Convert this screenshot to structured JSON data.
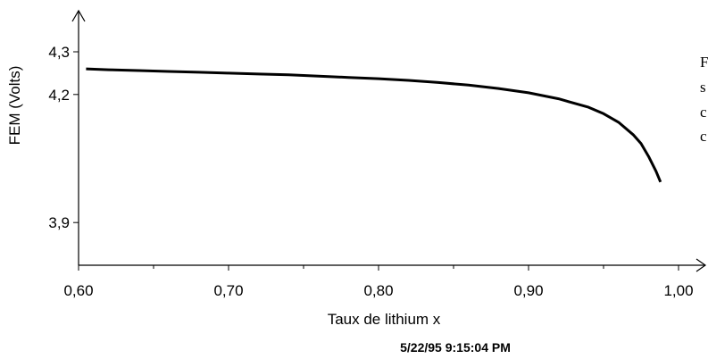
{
  "chart_data": {
    "type": "line",
    "xlabel": "Taux de lithium x",
    "ylabel": "FEM (Volts)",
    "xlim": [
      0.6,
      1.0
    ],
    "ylim": [
      3.8,
      4.3
    ],
    "x_ticks": [
      {
        "value": 0.6,
        "label": "0,60"
      },
      {
        "value": 0.7,
        "label": "0,70"
      },
      {
        "value": 0.8,
        "label": "0,80"
      },
      {
        "value": 0.9,
        "label": "0,90"
      },
      {
        "value": 1.0,
        "label": "1,00"
      }
    ],
    "x_minor_ticks": [
      0.65,
      0.75,
      0.85,
      0.95
    ],
    "y_ticks": [
      {
        "value": 4.3,
        "label": "4,3"
      },
      {
        "value": 4.2,
        "label": "4,2"
      },
      {
        "value": 3.9,
        "label": "3,9"
      }
    ],
    "grid": false,
    "series": [
      {
        "color": "#000000",
        "x": [
          0.605,
          0.62,
          0.64,
          0.66,
          0.68,
          0.7,
          0.72,
          0.74,
          0.76,
          0.78,
          0.8,
          0.82,
          0.84,
          0.86,
          0.88,
          0.9,
          0.92,
          0.94,
          0.95,
          0.96,
          0.97,
          0.975,
          0.98,
          0.985,
          0.988
        ],
        "y": [
          4.26,
          4.258,
          4.256,
          4.254,
          4.252,
          4.25,
          4.248,
          4.246,
          4.243,
          4.24,
          4.237,
          4.233,
          4.228,
          4.222,
          4.214,
          4.204,
          4.19,
          4.17,
          4.155,
          4.135,
          4.105,
          4.085,
          4.055,
          4.02,
          3.995
        ]
      }
    ]
  },
  "timestamp": "5/22/95  9:15:04 PM",
  "side_text": [
    "F",
    "s",
    "c",
    "c"
  ]
}
